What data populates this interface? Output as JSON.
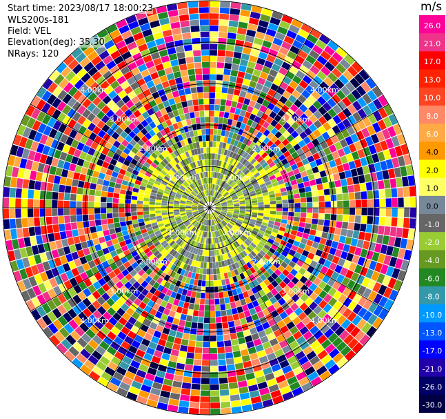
{
  "header": {
    "start_time": "Start time: 2023/08/17 18:00:23",
    "instrument": "WLS200s-181",
    "field": "Field: VEL",
    "elevation": "Elevation(deg): 35.30",
    "nrays": "NRays: 120"
  },
  "chart_data": {
    "type": "polar-ppi",
    "field": "VEL",
    "units": "m/s",
    "range_ring_labels": [
      "1.00km",
      "2.00km",
      "3.00km",
      "4.00km"
    ],
    "colorbar": {
      "ticks": [
        "26.0",
        "21.0",
        "17.0",
        "13.0",
        "10.0",
        "8.0",
        "6.0",
        "4.0",
        "2.0",
        "1.0",
        "0.0",
        "-1.0",
        "-2.0",
        "-4.0",
        "-6.0",
        "-8.0",
        "-10.0",
        "-13.0",
        "-17.0",
        "-21.0",
        "-26.0",
        "-30.0"
      ],
      "colors": [
        "#ff0099",
        "#ee3388",
        "#ff0000",
        "#ff2200",
        "#ff4422",
        "#ff8866",
        "#ffaa44",
        "#ff9900",
        "#ffff00",
        "#ffff66",
        "#778899",
        "#666666",
        "#99cc33",
        "#669922",
        "#228822",
        "#3399aa",
        "#0099ff",
        "#0055ff",
        "#0000ff",
        "#2200aa",
        "#000066",
        "#000044"
      ]
    },
    "nrays": 120,
    "elevation_deg": 35.3,
    "inner_region_values": [
      "0.0",
      "1.0",
      "2.0",
      "-1.0",
      "-2.0"
    ]
  }
}
